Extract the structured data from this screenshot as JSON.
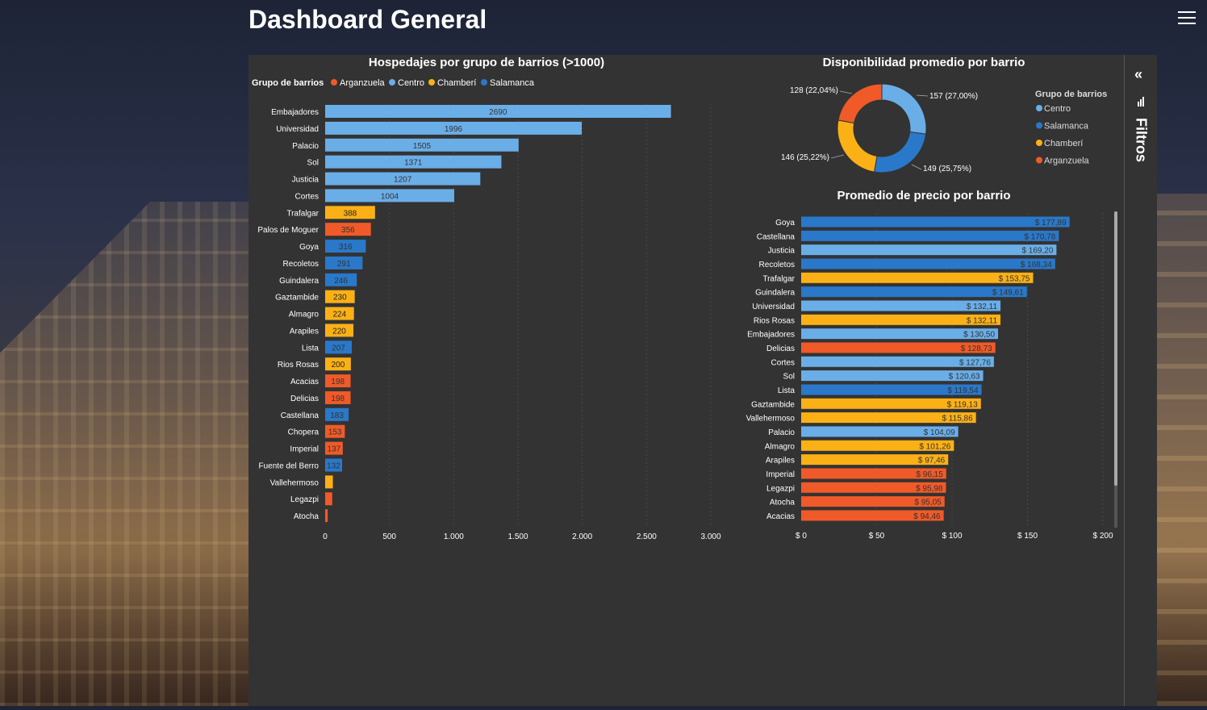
{
  "header": {
    "title": "Dashboard General"
  },
  "sidebar": {
    "label": "Filtros"
  },
  "colors": {
    "Arganzuela": "#f05a28",
    "Centro": "#6aaee8",
    "Chamberí": "#fbb116",
    "Salamanca": "#2a78c9"
  },
  "charts": {
    "bar1": {
      "title": "Hospedajes por grupo de barrios (>1000)",
      "legend_title": "Grupo de barrios",
      "legend": [
        "Arganzuela",
        "Centro",
        "Chamberí",
        "Salamanca"
      ]
    },
    "donut": {
      "title": "Disponibilidad promedio por barrio",
      "legend_title": "Grupo de barrios",
      "legend": [
        "Centro",
        "Salamanca",
        "Chamberí",
        "Arganzuela"
      ]
    },
    "bar2": {
      "title": "Promedio de precio por barrio"
    }
  },
  "chart_data": [
    {
      "type": "bar",
      "orientation": "horizontal",
      "title": "Hospedajes por grupo de barrios (>1000)",
      "legend_title": "Grupo de barrios",
      "legend_position": "top-left",
      "categories": [
        "Embajadores",
        "Universidad",
        "Palacio",
        "Sol",
        "Justicia",
        "Cortes",
        "Trafalgar",
        "Palos de Moguer",
        "Goya",
        "Recoletos",
        "Guindalera",
        "Gaztambide",
        "Almagro",
        "Arapiles",
        "Lista",
        "Rios Rosas",
        "Acacias",
        "Delicias",
        "Castellana",
        "Chopera",
        "Imperial",
        "Fuente del Berro",
        "Vallehermoso",
        "Legazpi",
        "Atocha"
      ],
      "values": [
        2690,
        1996,
        1505,
        1371,
        1207,
        1004,
        388,
        356,
        316,
        291,
        246,
        230,
        224,
        220,
        207,
        200,
        198,
        198,
        183,
        153,
        137,
        132,
        60,
        55,
        20
      ],
      "labels": [
        "2690",
        "1996",
        "1505",
        "1371",
        "1207",
        "1004",
        "388",
        "356",
        "316",
        "291",
        "246",
        "230",
        "224",
        "220",
        "207",
        "200",
        "198",
        "198",
        "183",
        "153",
        "137",
        "132",
        "",
        "",
        ""
      ],
      "groups": [
        "Centro",
        "Centro",
        "Centro",
        "Centro",
        "Centro",
        "Centro",
        "Chamberí",
        "Arganzuela",
        "Salamanca",
        "Salamanca",
        "Salamanca",
        "Chamberí",
        "Chamberí",
        "Chamberí",
        "Salamanca",
        "Chamberí",
        "Arganzuela",
        "Arganzuela",
        "Salamanca",
        "Arganzuela",
        "Arganzuela",
        "Salamanca",
        "Chamberí",
        "Arganzuela",
        "Arganzuela"
      ],
      "xlim": [
        0,
        3000
      ],
      "ticks": [
        "0",
        "500",
        "1.000",
        "1.500",
        "2.000",
        "2.500",
        "3.000"
      ],
      "grid": true
    },
    {
      "type": "pie",
      "style": "donut",
      "title": "Disponibilidad promedio por barrio",
      "legend_title": "Grupo de barrios",
      "legend_position": "right",
      "categories": [
        "Centro",
        "Salamanca",
        "Chamberí",
        "Arganzuela"
      ],
      "values": [
        157,
        149,
        146,
        128
      ],
      "labels": [
        "157 (27,00%)",
        "149 (25,75%)",
        "146 (25,22%)",
        "128 (22,04%)"
      ]
    },
    {
      "type": "bar",
      "orientation": "horizontal",
      "title": "Promedio de precio por barrio",
      "categories": [
        "Goya",
        "Castellana",
        "Justicia",
        "Recoletos",
        "Trafalgar",
        "Guindalera",
        "Universidad",
        "Rios Rosas",
        "Embajadores",
        "Delicias",
        "Cortes",
        "Sol",
        "Lista",
        "Gaztambide",
        "Vallehermoso",
        "Palacio",
        "Almagro",
        "Arapiles",
        "Imperial",
        "Legazpi",
        "Atocha",
        "Acacias"
      ],
      "values": [
        177.89,
        170.78,
        169.2,
        168.34,
        153.75,
        149.61,
        132.11,
        132.11,
        130.5,
        128.73,
        127.76,
        120.63,
        119.54,
        119.13,
        115.86,
        104.09,
        101.26,
        97.46,
        96.15,
        95.98,
        95.05,
        94.46
      ],
      "labels": [
        "$ 177,89",
        "$ 170,78",
        "$ 169,20",
        "$ 168,34",
        "$ 153,75",
        "$ 149,61",
        "$ 132,11",
        "$ 132,11",
        "$ 130,50",
        "$ 128,73",
        "$ 127,76",
        "$ 120,63",
        "$ 119,54",
        "$ 119,13",
        "$ 115,86",
        "$ 104,09",
        "$ 101,26",
        "$ 97,46",
        "$ 96,15",
        "$ 95,98",
        "$ 95,05",
        "$ 94,46"
      ],
      "groups": [
        "Salamanca",
        "Salamanca",
        "Centro",
        "Salamanca",
        "Chamberí",
        "Salamanca",
        "Centro",
        "Chamberí",
        "Centro",
        "Arganzuela",
        "Centro",
        "Centro",
        "Salamanca",
        "Chamberí",
        "Chamberí",
        "Centro",
        "Chamberí",
        "Chamberí",
        "Arganzuela",
        "Arganzuela",
        "Arganzuela",
        "Arganzuela"
      ],
      "xlim": [
        0,
        200
      ],
      "ticks": [
        "$ 0",
        "$ 50",
        "$ 100",
        "$ 150",
        "$ 200"
      ],
      "grid": true
    }
  ]
}
